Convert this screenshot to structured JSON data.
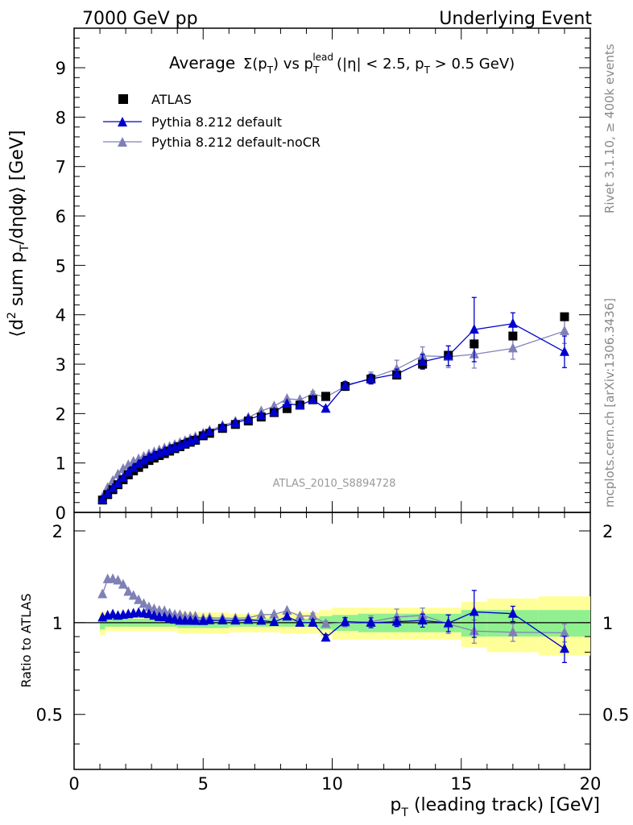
{
  "header": {
    "left": "7000 GeV pp",
    "right": "Underlying Event"
  },
  "side_labels": {
    "top": "Rivet 3.1.10, ≥ 400k events",
    "bottom": "mcplots.cern.ch [arXiv:1306.3436]"
  },
  "analysis_label": "ATLAS_2010_S8894728",
  "chart_data": {
    "type": "scatter",
    "title": {
      "main": "Average",
      "sigma": "Σ(p",
      "sigma_sub": "T",
      "vs": ") vs p",
      "lead_sub": "T",
      "lead_sup": "lead",
      "cuts_a": "(|η| < 2.5, p",
      "cuts_sub": "T",
      "cuts_b": " > 0.5 GeV)"
    },
    "ylabel": {
      "a": "⟨d",
      "sup": "2",
      "b": " sum p",
      "sub": "T",
      "c": "/dηdφ⟩ [GeV]"
    },
    "xlabel": {
      "a": "p",
      "sub": "T",
      "b": " (leading track) [GeV]"
    },
    "ratio_ylabel": "Ratio to ATLAS",
    "xlim": [
      0,
      20
    ],
    "ylim": [
      0,
      9.8
    ],
    "ratio_ylim": [
      0.33,
      2.3
    ],
    "x_ticks": [
      "0",
      "5",
      "10",
      "15",
      "20"
    ],
    "y_ticks": [
      "0",
      "1",
      "2",
      "3",
      "4",
      "5",
      "6",
      "7",
      "8",
      "9"
    ],
    "ratio_ticks": [
      "0.5",
      "1",
      "2"
    ],
    "legend": [
      "ATLAS",
      "Pythia 8.212 default",
      "Pythia 8.212 default-noCR"
    ],
    "colors": {
      "data": "#000000",
      "default": "#0000cc",
      "nocr": "#8080b8",
      "band_inner": "#90f090",
      "band_outer": "#ffff99"
    },
    "x": [
      1.1,
      1.3,
      1.5,
      1.7,
      1.9,
      2.1,
      2.3,
      2.5,
      2.7,
      2.9,
      3.1,
      3.3,
      3.5,
      3.7,
      3.9,
      4.1,
      4.3,
      4.5,
      4.7,
      5.0,
      5.25,
      5.75,
      6.25,
      6.75,
      7.25,
      7.75,
      8.25,
      8.75,
      9.25,
      9.75,
      10.5,
      11.5,
      12.5,
      13.5,
      14.5,
      15.5,
      17.0,
      19.0
    ],
    "series": [
      {
        "name": "ATLAS",
        "values": [
          0.25,
          0.36,
          0.46,
          0.56,
          0.66,
          0.76,
          0.84,
          0.91,
          0.98,
          1.05,
          1.1,
          1.15,
          1.19,
          1.24,
          1.29,
          1.33,
          1.38,
          1.42,
          1.46,
          1.55,
          1.6,
          1.7,
          1.78,
          1.85,
          1.93,
          2.02,
          2.1,
          2.17,
          2.28,
          2.35,
          2.55,
          2.7,
          2.78,
          3.0,
          3.18,
          3.41,
          3.57,
          3.96
        ]
      },
      {
        "name": "Pythia 8.212 default",
        "values": [
          0.26,
          0.38,
          0.49,
          0.59,
          0.7,
          0.81,
          0.9,
          0.98,
          1.05,
          1.12,
          1.16,
          1.2,
          1.24,
          1.28,
          1.32,
          1.35,
          1.4,
          1.44,
          1.48,
          1.57,
          1.63,
          1.73,
          1.81,
          1.89,
          1.96,
          2.03,
          2.2,
          2.17,
          2.28,
          2.1,
          2.57,
          2.7,
          2.8,
          3.05,
          3.17,
          3.7,
          3.82,
          3.25
        ],
        "errors": [
          0,
          0,
          0,
          0,
          0,
          0,
          0,
          0,
          0,
          0,
          0,
          0,
          0,
          0,
          0,
          0,
          0,
          0,
          0,
          0,
          0,
          0,
          0,
          0,
          0,
          0,
          0,
          0,
          0.05,
          0.05,
          0.08,
          0.1,
          0.1,
          0.15,
          0.2,
          0.65,
          0.22,
          0.32
        ]
      },
      {
        "name": "Pythia 8.212 default-noCR",
        "values": [
          0.31,
          0.5,
          0.64,
          0.77,
          0.88,
          0.96,
          1.03,
          1.08,
          1.13,
          1.18,
          1.22,
          1.26,
          1.3,
          1.33,
          1.37,
          1.41,
          1.45,
          1.49,
          1.53,
          1.6,
          1.66,
          1.76,
          1.84,
          1.92,
          2.05,
          2.15,
          2.3,
          2.28,
          2.4,
          2.33,
          2.55,
          2.72,
          2.9,
          3.17,
          3.15,
          3.2,
          3.32,
          3.67
        ],
        "errors": [
          0,
          0,
          0,
          0,
          0,
          0,
          0,
          0,
          0,
          0,
          0,
          0,
          0,
          0,
          0,
          0,
          0,
          0,
          0,
          0,
          0,
          0,
          0,
          0,
          0,
          0,
          0,
          0,
          0.05,
          0.05,
          0.08,
          0.12,
          0.18,
          0.18,
          0.22,
          0.28,
          0.22,
          0.25
        ]
      }
    ],
    "band": {
      "x_edges": [
        1.0,
        1.2,
        2.0,
        4.0,
        6.0,
        8.0,
        9.5,
        10.0,
        11.0,
        13.0,
        15.0,
        16.0,
        18.0,
        20.0
      ],
      "inner": [
        0.05,
        0.03,
        0.03,
        0.04,
        0.03,
        0.03,
        0.05,
        0.06,
        0.07,
        0.07,
        0.1,
        0.1,
        0.1,
        0.1
      ],
      "outer": [
        0.09,
        0.06,
        0.06,
        0.08,
        0.07,
        0.08,
        0.1,
        0.12,
        0.12,
        0.12,
        0.17,
        0.2,
        0.22,
        0.22
      ]
    }
  }
}
